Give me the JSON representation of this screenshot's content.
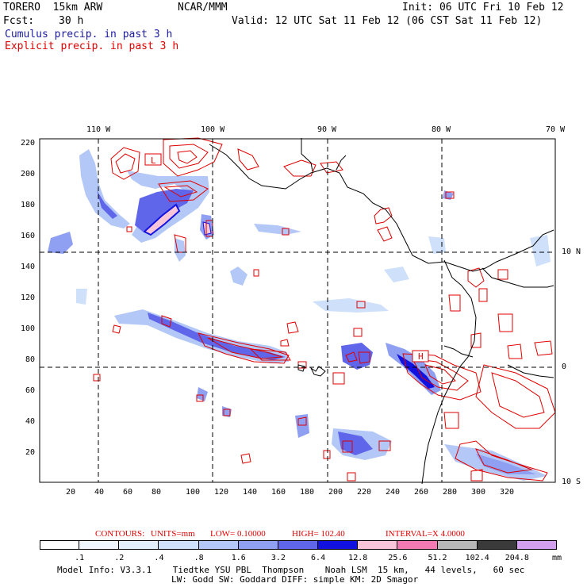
{
  "header": {
    "model": "TORERO  15km ARW",
    "org": "NCAR/MMM",
    "init": "Init: 06 UTC Fri 10 Feb 12",
    "fcst_label": "Fcst:",
    "fcst_hours": "30 h",
    "valid": "Valid: 12 UTC Sat 11 Feb 12 (06 CST Sat 11 Feb 12)",
    "cumulus": "Cumulus precip. in past 3 h",
    "explicit": "Explicit precip. in past 3 h"
  },
  "colors": {
    "cumulus_text": "#1a1aa0",
    "explicit_text": "#e00000",
    "contour": "#e00000",
    "coast": "#000000"
  },
  "map": {
    "lon_labels": [
      "110 W",
      "100 W",
      "90 W",
      "80 W",
      "70 W"
    ],
    "lat_labels": [
      "10 N",
      "0",
      "10 S"
    ],
    "x_ticks": [
      "20",
      "40",
      "60",
      "80",
      "100",
      "120",
      "140",
      "160",
      "180",
      "200",
      "220",
      "240",
      "260",
      "280",
      "300",
      "320"
    ],
    "y_ticks": [
      "220",
      "200",
      "180",
      "160",
      "140",
      "120",
      "100",
      "80",
      "60",
      "40",
      "20"
    ],
    "box_labels": [
      "L",
      "H"
    ]
  },
  "contours_info": {
    "label": "CONTOURS:",
    "units": "UNITS=mm",
    "low": "LOW= 0.10000",
    "high": "HIGH= 102.40",
    "interval": "INTERVAL=X 4.0000"
  },
  "colorbar": {
    "levels": [
      ".1",
      ".2",
      ".4",
      ".8",
      "1.6",
      "3.2",
      "6.4",
      "12.8",
      "25.6",
      "51.2",
      "102.4",
      "204.8"
    ],
    "colors": [
      "#ffffff",
      "#f0f6ff",
      "#e2eefc",
      "#cfe0fb",
      "#b4c8f8",
      "#8f9ff2",
      "#5f66ea",
      "#1212e0",
      "#f8c6d8",
      "#f27ab2",
      "#b8b8b8",
      "#3a3a3a",
      "#d2a0ee"
    ],
    "unit": "mm"
  },
  "footer": {
    "line1": "Model Info: V3.3.1    Tiedtke YSU PBL  Thompson    Noah LSM  15 km,   44 levels,   60 sec",
    "line2": "LW: Godd SW: Goddard DIFF: simple KM: 2D Smagor"
  }
}
